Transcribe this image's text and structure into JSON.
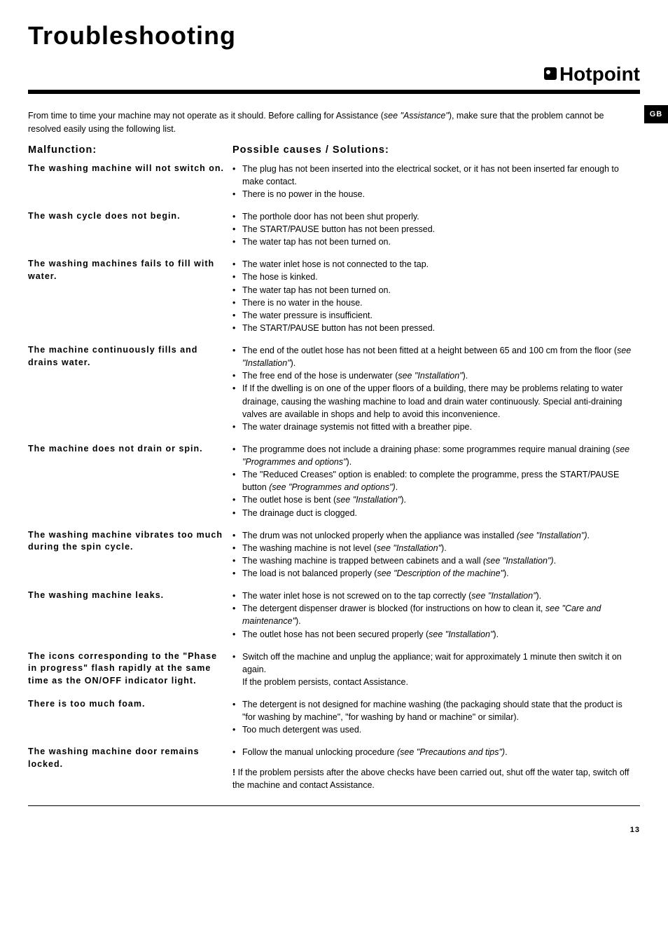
{
  "page": {
    "title": "Troubleshooting",
    "brand": "Hotpoint",
    "lang_tab": "GB",
    "intro_text": "From time to time your machine may not operate as it should. Before calling for Assistance (",
    "intro_ital": "see \"Assistance\"",
    "intro_tail": "), make sure that the problem cannot be resolved easily using the following list.",
    "page_number": "13"
  },
  "headings": {
    "left": "Malfunction:",
    "right": "Possible causes / Solutions:"
  },
  "rows": [
    {
      "malf": "The washing machine will not switch on.",
      "sols": [
        {
          "t": "The plug has not been inserted into the electrical socket, or it has not been inserted far enough to make contact."
        },
        {
          "t": "There is no power in the house."
        }
      ]
    },
    {
      "malf": "The wash cycle does not begin.",
      "sols": [
        {
          "t": "The porthole door has not been shut properly."
        },
        {
          "t": "The START/PAUSE button has not been pressed."
        },
        {
          "t": "The water tap has not been turned on."
        }
      ]
    },
    {
      "malf": "The washing machines fails to fill with water.",
      "sols": [
        {
          "t": "The water inlet hose is not connected to the tap."
        },
        {
          "t": "The hose is kinked."
        },
        {
          "t": "The water tap has not been turned on."
        },
        {
          "t": "There is no water in the house."
        },
        {
          "t": "The water pressure is insufficient."
        },
        {
          "t": "The START/PAUSE button has not been pressed."
        }
      ]
    },
    {
      "malf": "The machine continuously fills and drains water.",
      "sols": [
        {
          "t": "The end of the outlet hose has not been fitted at a height between 65 and 100 cm from the floor (",
          "i": "see \"Installation\"",
          "a": ")."
        },
        {
          "t": "The free end of the hose is underwater (",
          "i": "see \"Installation\"",
          "a": ")."
        },
        {
          "t": "If If the dwelling is on one of the upper floors of a building, there may be problems relating to water drainage, causing the washing machine to load and drain water continuously. Special anti-draining valves are available in shops and help to avoid this inconvenience."
        },
        {
          "t": "The water drainage systemis not fitted with a breather pipe."
        }
      ]
    },
    {
      "malf": "The machine does not drain or spin.",
      "sols": [
        {
          "t": "The programme does not include a draining phase: some programmes require manual draining (",
          "i": "see \"Programmes and options\"",
          "a": ")."
        },
        {
          "t": "The \"Reduced Creases\" option is enabled: to complete the programme, press the START/PAUSE button ",
          "i": "(see \"Programmes and options\")",
          "a": "."
        },
        {
          "t": "The outlet hose is bent (",
          "i": "see \"Installation\"",
          "a": ")."
        },
        {
          "t": "The drainage duct is clogged."
        }
      ]
    },
    {
      "malf": "The washing machine vibrates too much during the spin cycle.",
      "sols": [
        {
          "t": "The drum was not unlocked properly when the appliance was installed ",
          "i": "(see \"Installation\")",
          "a": "."
        },
        {
          "t": "The washing machine is not level (",
          "i": "see \"Installation\"",
          "a": ")."
        },
        {
          "t": "The washing machine is trapped between cabinets and a wall ",
          "i": "(see \"Installation\")",
          "a": "."
        },
        {
          "t": "The load is not balanced properly (",
          "i": "see \"Description of the machine\"",
          "a": ")."
        }
      ]
    },
    {
      "malf": "The washing machine leaks.",
      "sols": [
        {
          "t": "The water inlet hose is not screwed on to the tap correctly (",
          "i": "see \"Installation\"",
          "a": ")."
        },
        {
          "t": "The detergent dispenser drawer is blocked (for instructions on how to clean it, ",
          "i": "see \"Care and maintenance\"",
          "a": ")."
        },
        {
          "t": "The outlet hose has not been secured properly (",
          "i": "see \"Installation\"",
          "a": ")."
        }
      ]
    },
    {
      "malf": "The icons corresponding to the \"Phase in progress\" flash rapidly at the same time as the ON/OFF indicator light.",
      "sols": [
        {
          "t": "Switch off the machine and unplug the appliance; wait for approximately 1 minute then switch it on again."
        }
      ],
      "plain": "If the problem persists, contact Assistance."
    },
    {
      "malf": "There is too much foam.",
      "sols": [
        {
          "t": "The detergent is not designed for machine washing (the packaging should state that the product is \"for washing by machine\", \"for washing by hand or machine\" or similar)."
        },
        {
          "t": "Too much detergent was used."
        }
      ]
    },
    {
      "malf": "The washing machine door remains locked.",
      "sols": [
        {
          "t": "Follow the manual unlocking procedure ",
          "i": "(see \"Precautions and tips\")",
          "a": "."
        }
      ]
    }
  ],
  "warning": {
    "mark": "!",
    "text": " If the problem persists after the above checks have been carried out, shut off the water tap, switch off the machine and contact Assistance."
  }
}
